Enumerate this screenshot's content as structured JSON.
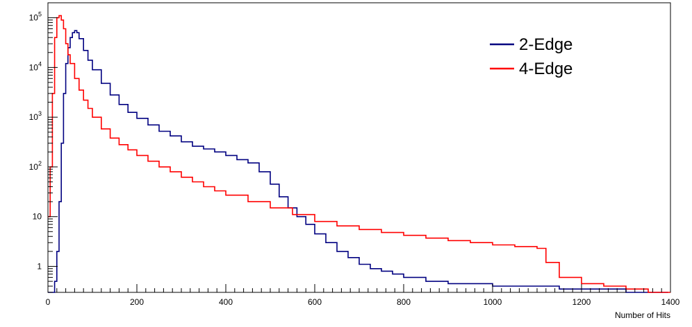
{
  "chart_data": {
    "type": "line",
    "title": "",
    "xlabel": "Number of Hits",
    "ylabel": "",
    "xlim": [
      0,
      1400
    ],
    "ylim": [
      0.3,
      200000
    ],
    "yscale": "log",
    "grid": false,
    "legend_position": "top-right",
    "x_ticks": [
      {
        "value": 0,
        "label": "0"
      },
      {
        "value": 200,
        "label": "200"
      },
      {
        "value": 400,
        "label": "400"
      },
      {
        "value": 600,
        "label": "600"
      },
      {
        "value": 800,
        "label": "800"
      },
      {
        "value": 1000,
        "label": "1000"
      },
      {
        "value": 1200,
        "label": "1200"
      },
      {
        "value": 1400,
        "label": "1400"
      }
    ],
    "y_ticks": [
      {
        "value": 1,
        "base": "1",
        "exp": ""
      },
      {
        "value": 10,
        "base": "10",
        "exp": ""
      },
      {
        "value": 100,
        "base": "10",
        "exp": "2"
      },
      {
        "value": 1000,
        "base": "10",
        "exp": "3"
      },
      {
        "value": 10000,
        "base": "10",
        "exp": "4"
      },
      {
        "value": 100000,
        "base": "10",
        "exp": "5"
      }
    ],
    "series": [
      {
        "name": "2-Edge",
        "color": "#000080",
        "x": [
          0,
          10,
          15,
          20,
          25,
          30,
          35,
          40,
          45,
          50,
          55,
          60,
          65,
          70,
          80,
          90,
          100,
          120,
          140,
          160,
          180,
          200,
          225,
          250,
          275,
          300,
          325,
          350,
          375,
          400,
          425,
          450,
          475,
          500,
          520,
          540,
          560,
          580,
          600,
          625,
          650,
          675,
          700,
          725,
          750,
          775,
          800,
          850,
          900,
          950,
          1000,
          1050,
          1100,
          1150,
          1200,
          1250,
          1300,
          1350,
          1395
        ],
        "values": [
          0.3,
          0.3,
          0.5,
          2,
          20,
          300,
          3000,
          12000,
          25000,
          40000,
          50000,
          55000,
          50000,
          38000,
          22000,
          14000,
          9000,
          4800,
          2800,
          1800,
          1250,
          950,
          700,
          520,
          420,
          320,
          260,
          230,
          200,
          170,
          140,
          120,
          80,
          45,
          25,
          15,
          10,
          7,
          4.5,
          3,
          2,
          1.5,
          1.1,
          0.9,
          0.8,
          0.7,
          0.6,
          0.5,
          0.45,
          0.45,
          0.4,
          0.4,
          0.4,
          0.35,
          0.35,
          0.35,
          0.3,
          0.3,
          0.3
        ]
      },
      {
        "name": "4-Edge",
        "color": "#ff0000",
        "x": [
          0,
          5,
          10,
          15,
          20,
          25,
          30,
          35,
          40,
          45,
          50,
          60,
          70,
          80,
          90,
          100,
          120,
          140,
          160,
          180,
          200,
          225,
          250,
          275,
          300,
          325,
          350,
          375,
          400,
          450,
          500,
          550,
          600,
          650,
          700,
          750,
          800,
          850,
          900,
          950,
          1000,
          1050,
          1100,
          1120,
          1150,
          1200,
          1250,
          1300,
          1350,
          1400
        ],
        "values": [
          10,
          100,
          3000,
          40000,
          100000,
          110000,
          90000,
          60000,
          30000,
          18000,
          12000,
          6000,
          3500,
          2200,
          1500,
          1000,
          580,
          380,
          280,
          220,
          170,
          130,
          100,
          80,
          62,
          50,
          40,
          33,
          27,
          20,
          15,
          11,
          8,
          6.5,
          5.5,
          4.8,
          4.2,
          3.7,
          3.3,
          3,
          2.7,
          2.5,
          2.3,
          1.2,
          0.6,
          0.45,
          0.4,
          0.35,
          0.3,
          0.3
        ]
      }
    ]
  }
}
